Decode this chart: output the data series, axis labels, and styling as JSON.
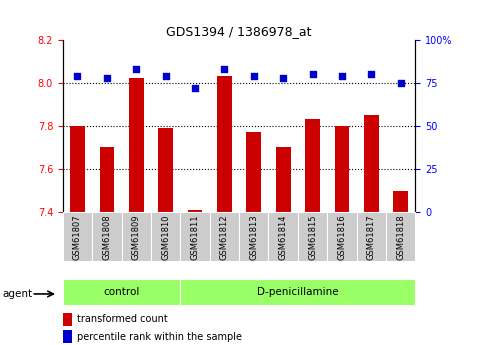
{
  "title": "GDS1394 / 1386978_at",
  "samples": [
    "GSM61807",
    "GSM61808",
    "GSM61809",
    "GSM61810",
    "GSM61811",
    "GSM61812",
    "GSM61813",
    "GSM61814",
    "GSM61815",
    "GSM61816",
    "GSM61817",
    "GSM61818"
  ],
  "transformed_count": [
    7.8,
    7.7,
    8.02,
    7.79,
    7.41,
    8.03,
    7.77,
    7.7,
    7.83,
    7.8,
    7.85,
    7.5
  ],
  "percentile_rank": [
    79,
    78,
    83,
    79,
    72,
    83,
    79,
    78,
    80,
    79,
    80,
    75
  ],
  "control_count": 4,
  "group_labels": [
    "control",
    "D-penicillamine"
  ],
  "ylim_left": [
    7.4,
    8.2
  ],
  "ylim_right": [
    0,
    100
  ],
  "yticks_left": [
    7.4,
    7.6,
    7.8,
    8.0,
    8.2
  ],
  "yticks_right": [
    0,
    25,
    50,
    75,
    100
  ],
  "bar_color": "#cc0000",
  "dot_color": "#0000cc",
  "bar_bottom": 7.4,
  "group_bg_color": "#99ff66",
  "sample_label_bg": "#cccccc",
  "legend_red_label": "transformed count",
  "legend_blue_label": "percentile rank within the sample",
  "agent_label": "agent",
  "hgrid_lines": [
    7.6,
    7.8,
    8.0
  ]
}
